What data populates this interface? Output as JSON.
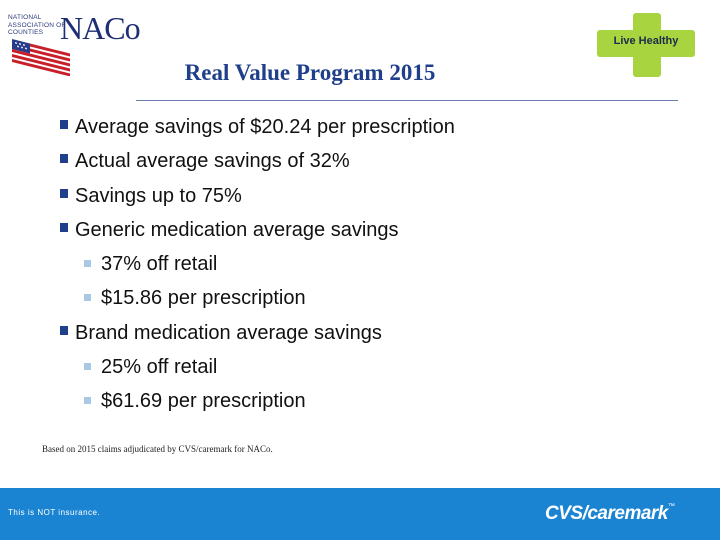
{
  "header": {
    "naco_logo": {
      "small_text": "National Association of Counties",
      "big_text": "NACo"
    },
    "live_healthy_logo": {
      "label": "Live Healthy",
      "cross_color": "#a8d53f"
    }
  },
  "slide": {
    "title": "Real Value Program 2015",
    "bullets": [
      {
        "text": "Average savings of $20.24 per prescription",
        "level": 1
      },
      {
        "text": "Actual average savings of 32%",
        "level": 1
      },
      {
        "text": "Savings up to 75%",
        "level": 1
      },
      {
        "text": "Generic medication average savings",
        "level": 1
      },
      {
        "text": "37% off retail",
        "level": 2
      },
      {
        "text": "$15.86 per prescription",
        "level": 2
      },
      {
        "text": "Brand medication average savings",
        "level": 1
      },
      {
        "text": "25% off retail",
        "level": 2
      },
      {
        "text": "$61.69 per prescription",
        "level": 2
      }
    ],
    "footnote": "Based on 2015 claims adjudicated by CVS/caremark for NACo."
  },
  "footer": {
    "disclaimer": "This is NOT insurance.",
    "logo_cvs": "CVS",
    "logo_caremark": "/caremark",
    "logo_tm": "™",
    "bar_color": "#1b84d2"
  }
}
